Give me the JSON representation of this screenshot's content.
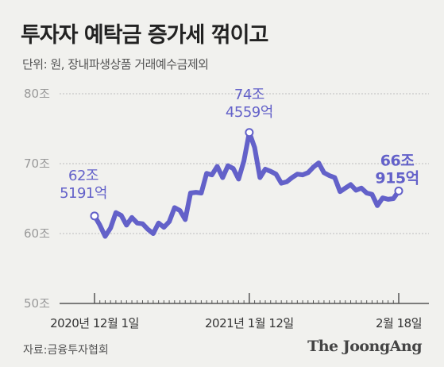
{
  "title": "투자자 예탁금 증가세 꺾이고",
  "subtitle": "단위: 원, 장내파생상품 거래예수금제외",
  "source": "자료:금융투자협회",
  "brand": "The JoongAng",
  "colors": {
    "line": "#6361c9",
    "label": "#6361c9",
    "grid": "#bdbdbd",
    "axis": "#555555",
    "background": "#f1f1ee"
  },
  "chart_data": {
    "type": "line",
    "title": "투자자 예탁금 증가세 꺾이고",
    "ylabel": "",
    "xlabel": "",
    "ylim": [
      50,
      80
    ],
    "y_ticks": [
      {
        "value": 80,
        "label": "80조"
      },
      {
        "value": 70,
        "label": "70조"
      },
      {
        "value": 60,
        "label": "60조"
      },
      {
        "value": 50,
        "label": "50조"
      }
    ],
    "x_tick_labels": [
      {
        "index": 0,
        "label": "2020년 12월 1일"
      },
      {
        "index": 29,
        "label": "2021년 1월 12일"
      },
      {
        "index": 57,
        "label": "2월 18일"
      }
    ],
    "grid": true,
    "values": [
      62.52,
      61.2,
      59.6,
      60.8,
      63.0,
      62.6,
      61.2,
      62.3,
      61.5,
      61.4,
      60.6,
      60.0,
      61.5,
      60.9,
      61.7,
      63.7,
      63.3,
      62.0,
      65.8,
      65.9,
      65.8,
      68.6,
      68.4,
      69.6,
      68.0,
      69.7,
      69.3,
      67.8,
      70.4,
      74.46,
      72.3,
      68.0,
      69.2,
      68.9,
      68.5,
      67.2,
      67.4,
      68.0,
      68.5,
      68.4,
      68.7,
      69.5,
      70.1,
      68.7,
      68.3,
      68.0,
      66.0,
      66.5,
      67.0,
      66.2,
      66.5,
      65.8,
      65.6,
      64.0,
      65.1,
      64.9,
      65.0,
      66.09
    ],
    "annotations": [
      {
        "index": 0,
        "lines": [
          "62조",
          "5191억"
        ],
        "bold": false
      },
      {
        "index": 29,
        "lines": [
          "74조",
          "4559억"
        ],
        "bold": false
      },
      {
        "index": 57,
        "lines": [
          "66조",
          "915억"
        ],
        "bold": true
      }
    ]
  }
}
